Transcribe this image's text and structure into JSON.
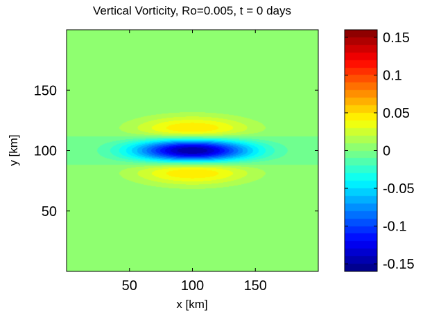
{
  "chart_data": {
    "type": "heatmap",
    "title": "Vertical Vorticity, Ro=0.005, t = 0 days",
    "xlabel": "x [km]",
    "ylabel": "y [km]",
    "xlim": [
      0,
      200
    ],
    "ylim": [
      0,
      200
    ],
    "xticks": [
      50,
      100,
      150
    ],
    "yticks": [
      50,
      100,
      150
    ],
    "x_tick_labels": [
      "50",
      "100",
      "150"
    ],
    "y_tick_labels": [
      "50",
      "100",
      "150"
    ],
    "clim": [
      -0.16,
      0.16
    ],
    "colormap": "jet",
    "colorbar_ticks": [
      0.15,
      0.1,
      0.05,
      0,
      -0.05,
      -0.1,
      -0.15
    ],
    "colorbar_tick_labels": [
      "0.15",
      "0.1",
      "0.05",
      "0",
      "-0.05",
      "-0.1",
      "-0.15"
    ],
    "field": {
      "description": "zonally elongated vortex centered at (100, 100) km",
      "center_x": 100,
      "center_y": 100,
      "core_min": -0.15,
      "flank_max": 0.05,
      "flank_y_offset": 15
    },
    "grid": false,
    "colorbar_position": "right"
  }
}
